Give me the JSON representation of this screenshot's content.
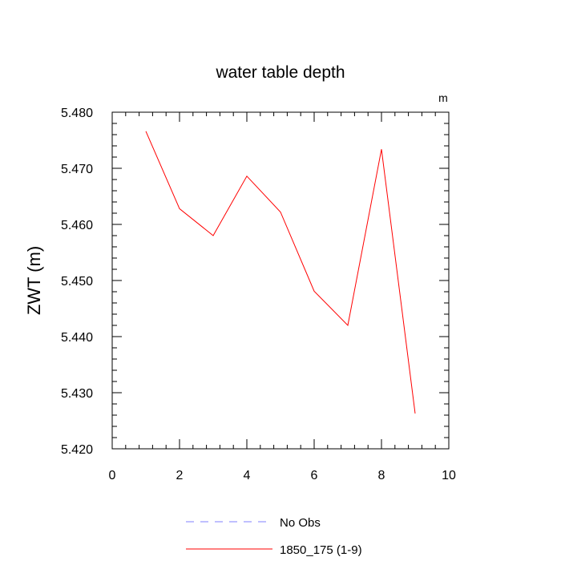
{
  "chart_data": {
    "type": "line",
    "title": "water table depth",
    "units_label": "m",
    "xlabel": "",
    "ylabel": "ZWT  (m)",
    "xlim": [
      0,
      10
    ],
    "ylim": [
      5.42,
      5.48
    ],
    "xticks": [
      0,
      2,
      4,
      6,
      8,
      10
    ],
    "xtick_labels": [
      "0",
      "2",
      "4",
      "6",
      "8",
      "10"
    ],
    "yticks": [
      5.42,
      5.43,
      5.44,
      5.45,
      5.46,
      5.47,
      5.48
    ],
    "ytick_labels": [
      "5.420",
      "5.430",
      "5.440",
      "5.450",
      "5.460",
      "5.470",
      "5.480"
    ],
    "grid": false,
    "legend_position": "bottom",
    "series": [
      {
        "name": "No Obs",
        "color": "#8080ff",
        "style": "dashed",
        "x": [],
        "y": []
      },
      {
        "name": "1850_175 (1-9)",
        "color": "#ff0000",
        "style": "solid",
        "x": [
          1,
          2,
          3,
          4,
          5,
          6,
          7,
          8,
          9
        ],
        "y": [
          5.4766,
          5.4628,
          5.458,
          5.4686,
          5.4622,
          5.4481,
          5.442,
          5.4734,
          5.4263
        ]
      }
    ]
  }
}
